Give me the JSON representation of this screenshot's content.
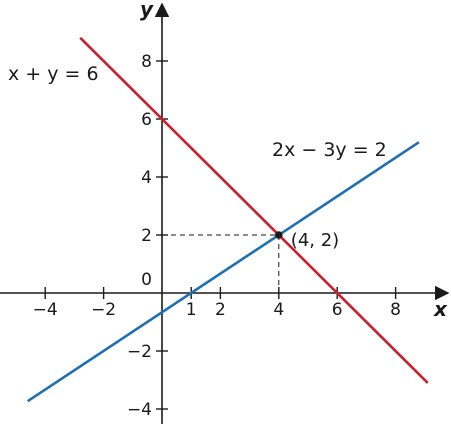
{
  "chart_data": {
    "type": "line",
    "title": "",
    "xlabel": "x",
    "ylabel": "y",
    "xlim": [
      -5,
      9.5
    ],
    "ylim": [
      -4.5,
      9.5
    ],
    "grid": false,
    "x_ticks": [
      -4,
      -2,
      1,
      2,
      4,
      6,
      8
    ],
    "x_tick_labels": [
      "−4",
      "−2",
      "1",
      "2",
      "4",
      "6",
      "8"
    ],
    "y_ticks": [
      -4,
      -2,
      2,
      4,
      6,
      8
    ],
    "y_tick_labels": [
      "−4",
      "−2",
      "2",
      "4",
      "6",
      "8"
    ],
    "origin_label": "0",
    "series": [
      {
        "name": "x + y = 6",
        "color": "#cc1f2b",
        "x": [
          -2.8,
          9.1
        ],
        "y": [
          8.8,
          -3.1
        ]
      },
      {
        "name": "2x − 3y = 2",
        "color": "#1f6fb3",
        "x": [
          -4.6,
          8.8
        ],
        "y": [
          -3.73,
          5.2
        ]
      }
    ],
    "intersection": {
      "x": 4,
      "y": 2,
      "label": "(4, 2)"
    },
    "annotations": [
      {
        "series": 0,
        "text": "x + y = 6"
      },
      {
        "series": 1,
        "text": "2x − 3y = 2"
      }
    ]
  }
}
